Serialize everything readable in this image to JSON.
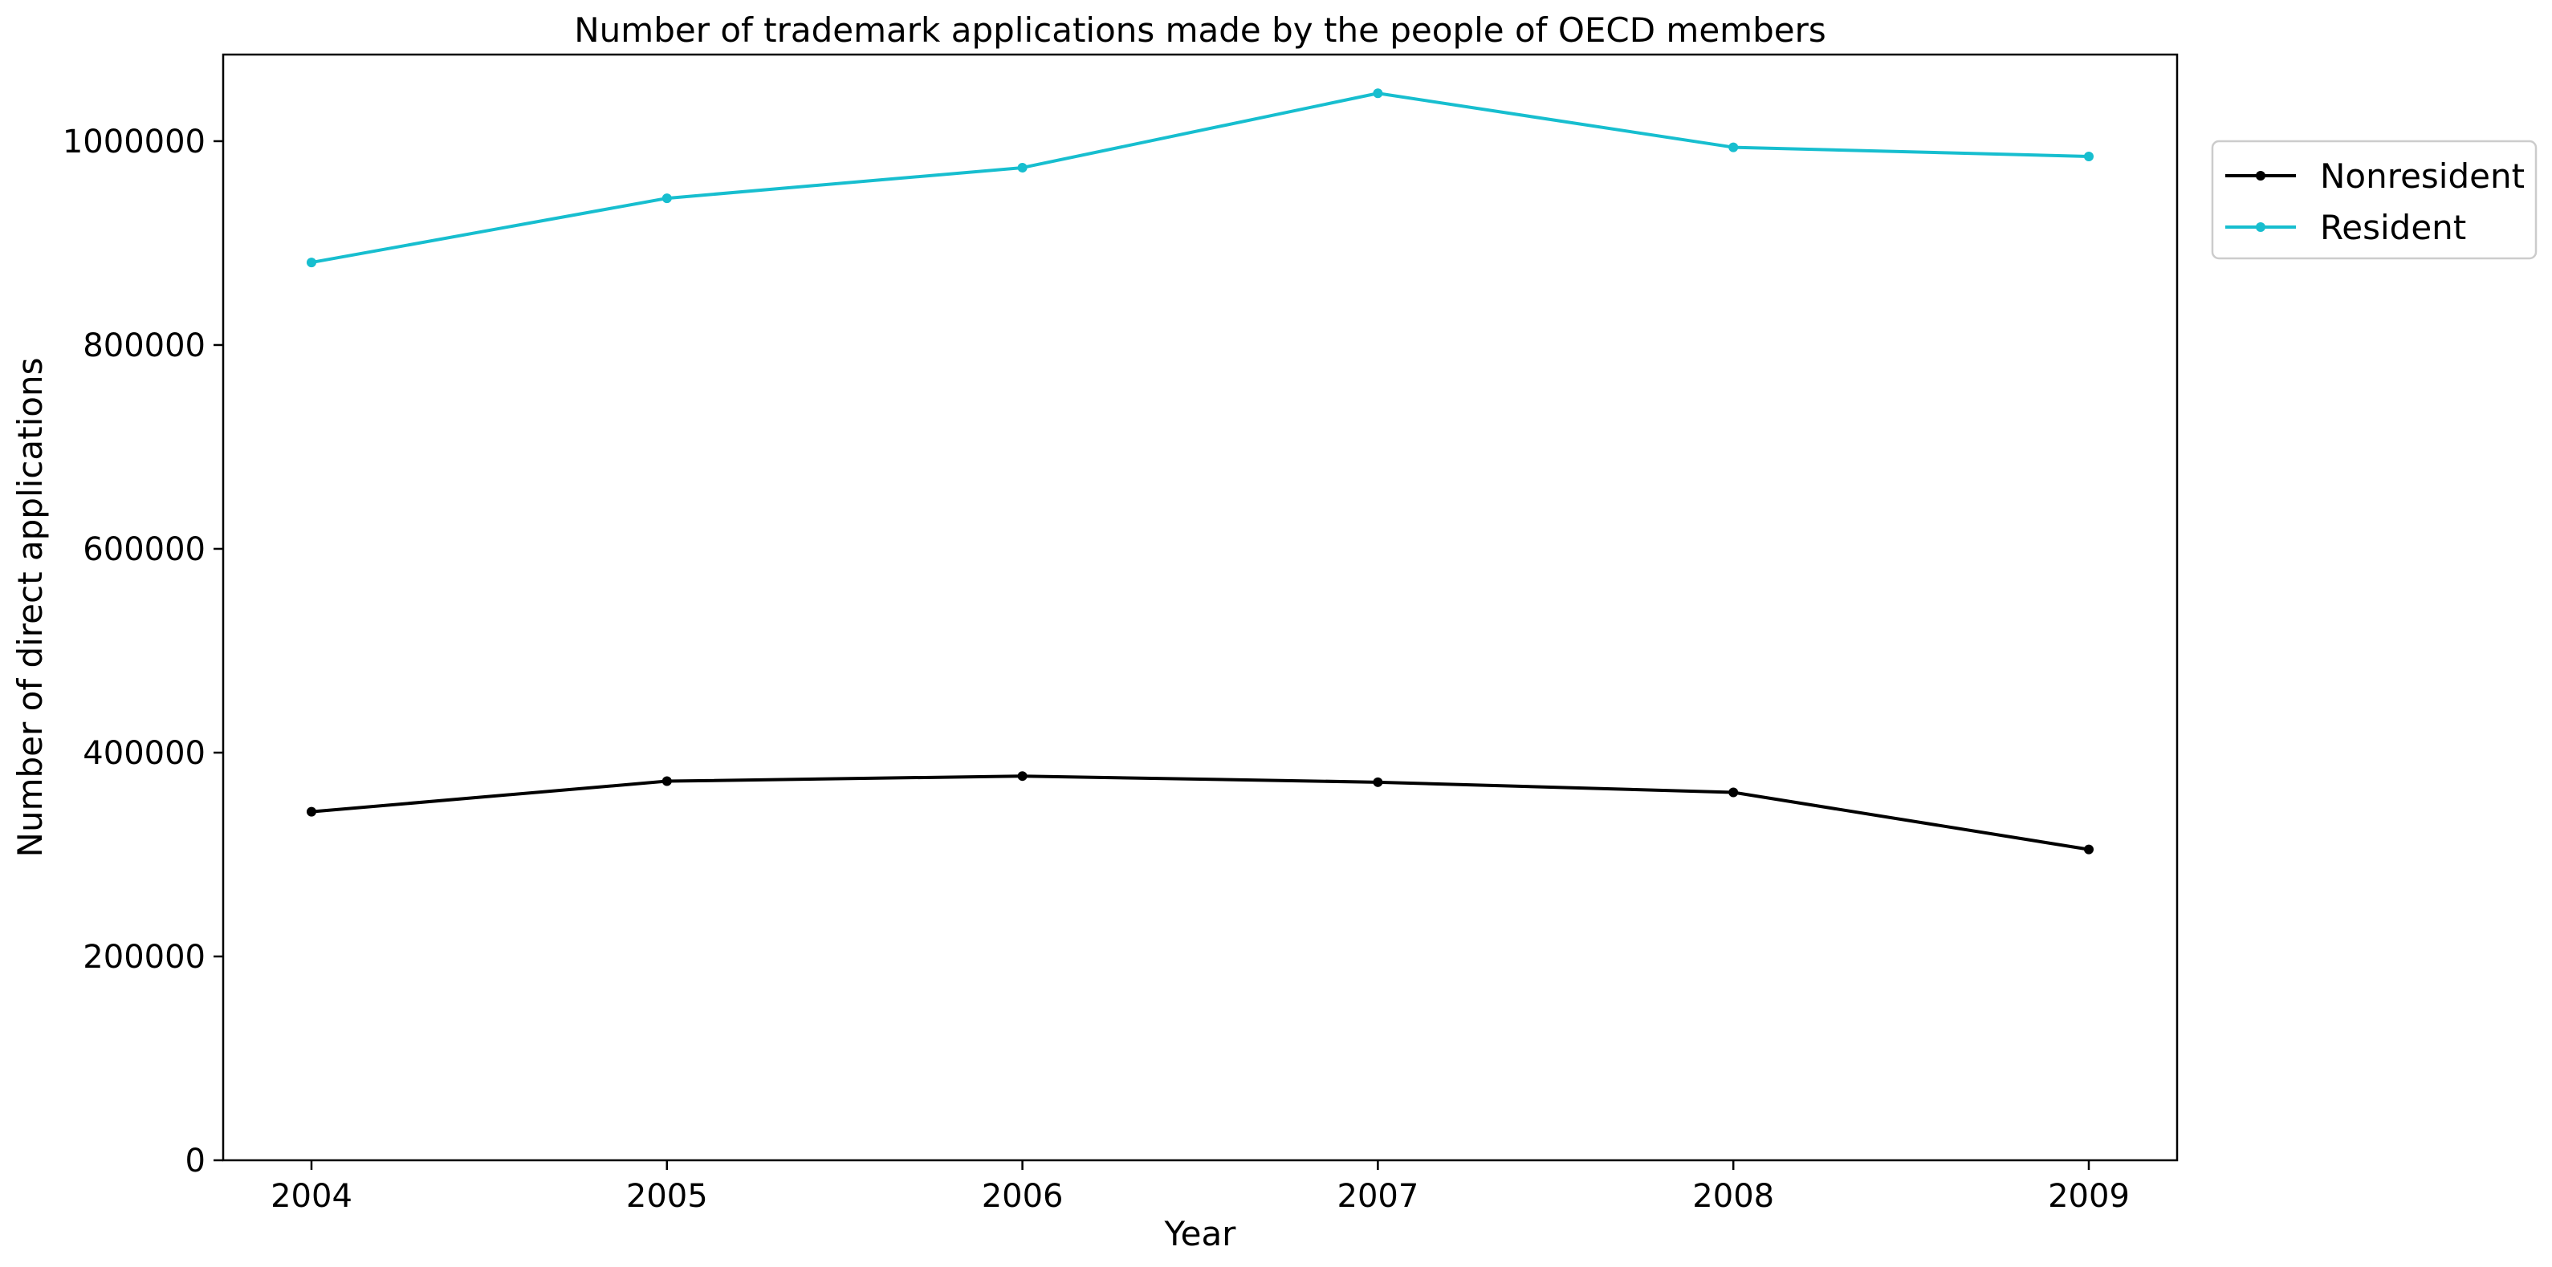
{
  "chart_data": {
    "type": "line",
    "title": "Number of trademark applications made by the people of OECD members",
    "xlabel": "Year",
    "ylabel": "Number of direct applications",
    "x": [
      "2004",
      "2005",
      "2006",
      "2007",
      "2008",
      "2009"
    ],
    "ylim": [
      0,
      1085000
    ],
    "yticks": [
      0,
      200000,
      400000,
      600000,
      800000,
      1000000
    ],
    "ytick_labels": [
      "0",
      "200000",
      "400000",
      "600000",
      "800000",
      "1000000"
    ],
    "grid": false,
    "legend_position": "outside-top-right",
    "series": [
      {
        "name": "Nonresident",
        "color": "#000000",
        "values": [
          342000,
          372000,
          377000,
          371000,
          361000,
          305000
        ]
      },
      {
        "name": "Resident",
        "color": "#17becf",
        "values": [
          881000,
          944000,
          974000,
          1047000,
          994000,
          985000
        ]
      }
    ]
  }
}
